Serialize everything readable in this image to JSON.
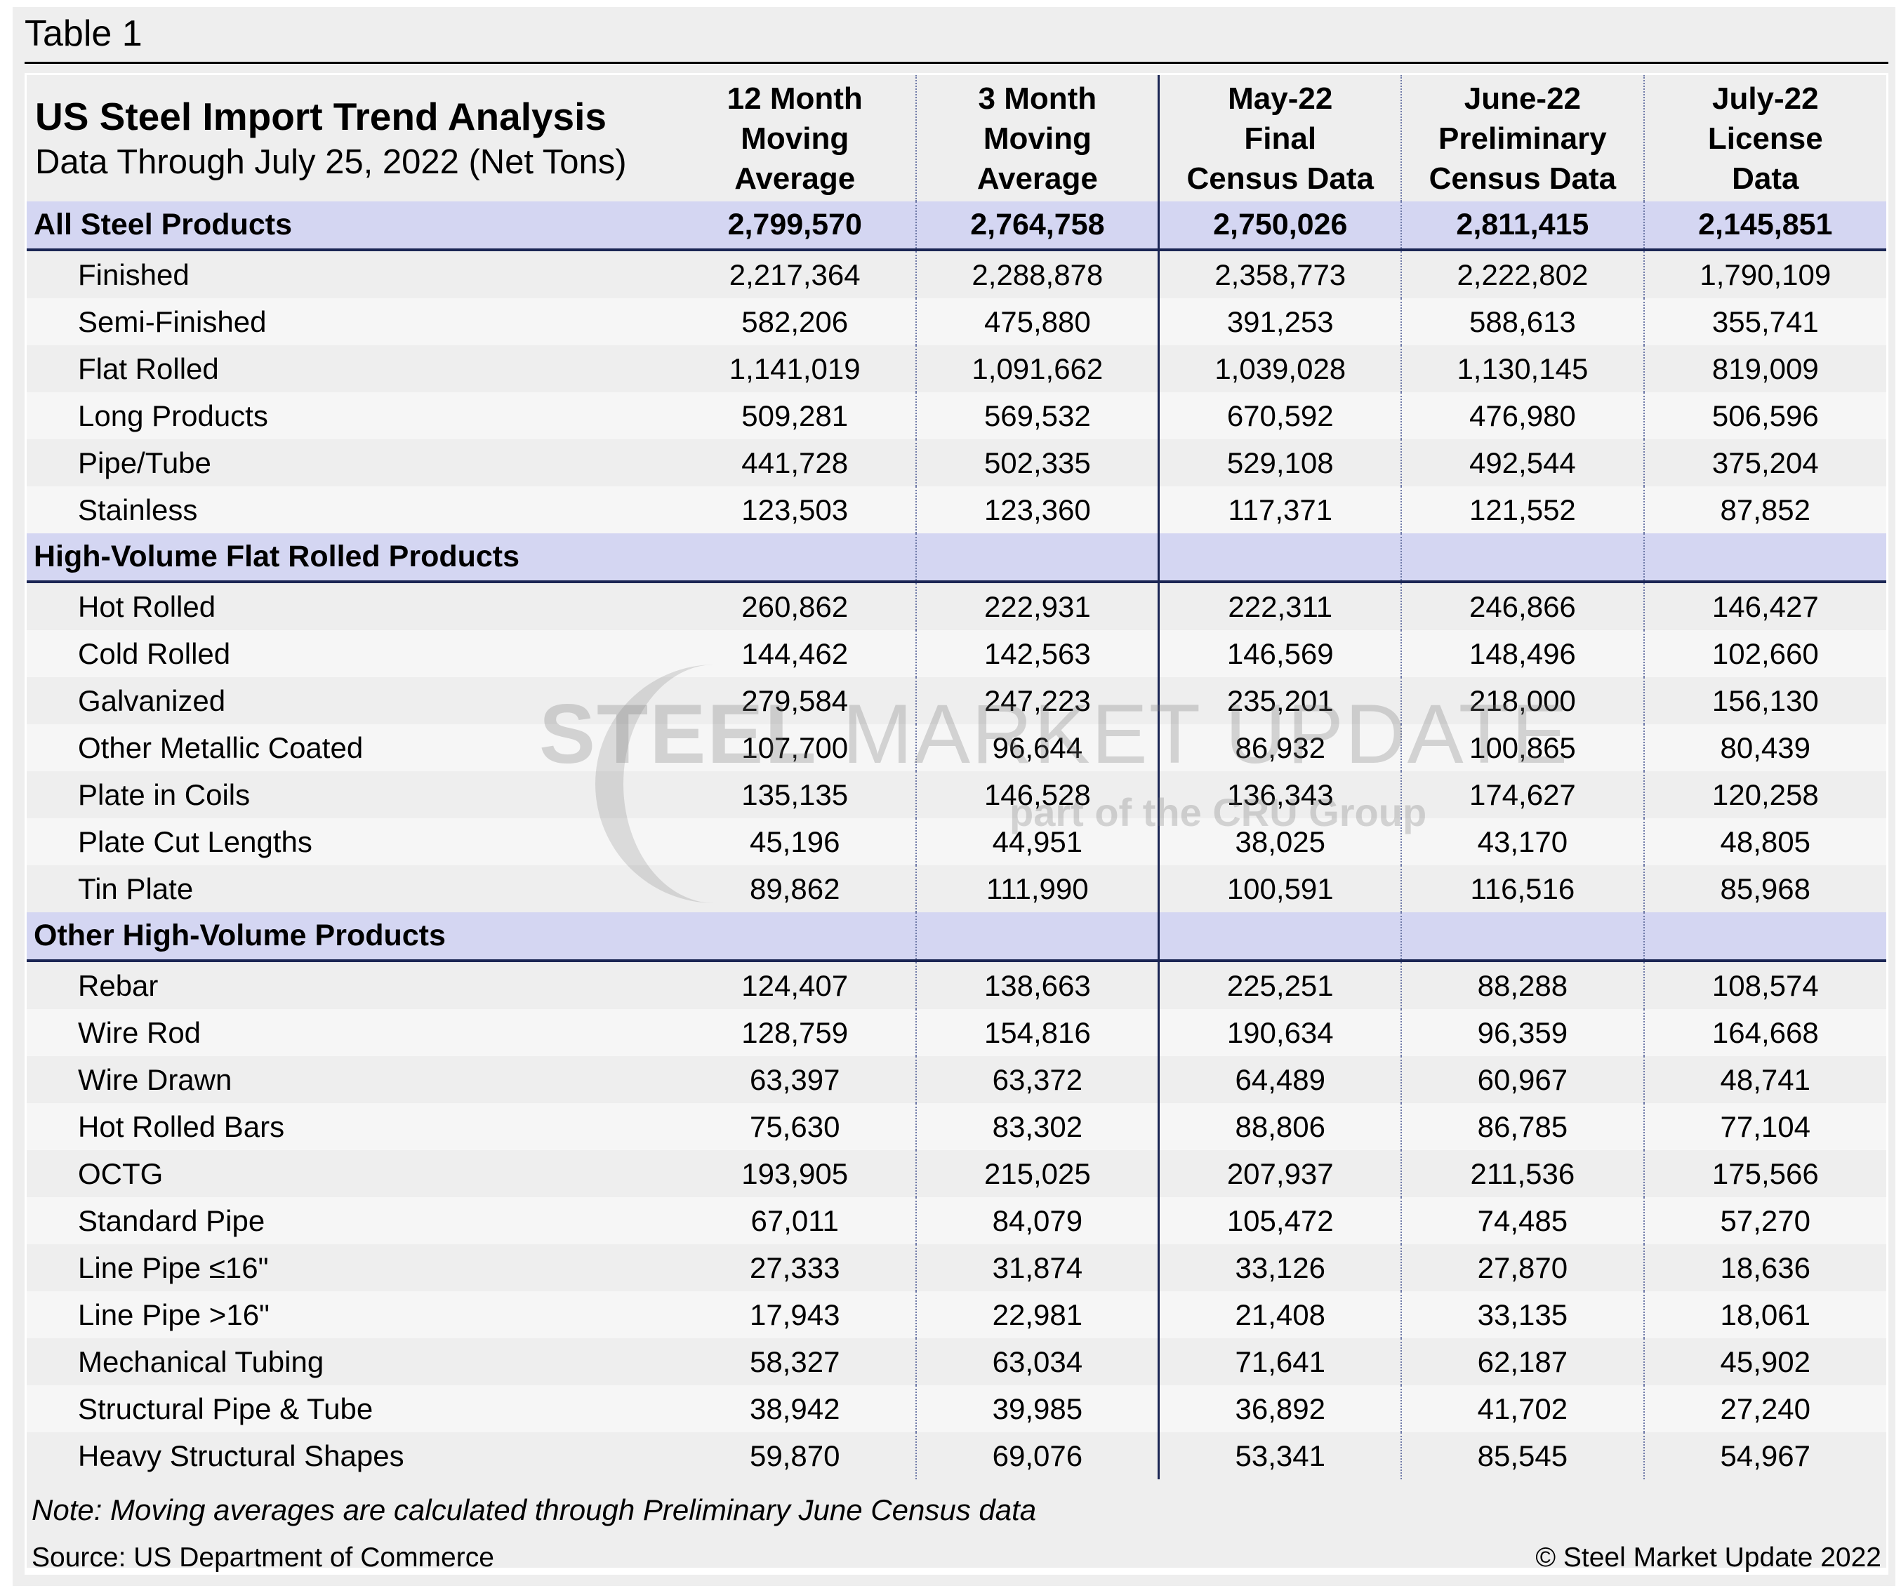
{
  "caption": "Table 1",
  "title": "US Steel Import Trend Analysis",
  "subtitle": "Data Through July 25, 2022 (Net Tons)",
  "columns": [
    [
      "12 Month",
      "Moving",
      "Average"
    ],
    [
      "3 Month",
      "Moving",
      "Average"
    ],
    [
      "May-22",
      "Final",
      "Census Data"
    ],
    [
      "June-22",
      "Preliminary",
      "Census Data"
    ],
    [
      "July-22",
      "License",
      "Data"
    ]
  ],
  "sections": [
    {
      "label": "All Steel Products",
      "values": [
        "2,799,570",
        "2,764,758",
        "2,750,026",
        "2,811,415",
        "2,145,851"
      ],
      "rows": [
        {
          "label": "Finished",
          "values": [
            "2,217,364",
            "2,288,878",
            "2,358,773",
            "2,222,802",
            "1,790,109"
          ]
        },
        {
          "label": "Semi-Finished",
          "values": [
            "582,206",
            "475,880",
            "391,253",
            "588,613",
            "355,741"
          ]
        },
        {
          "label": "Flat Rolled",
          "values": [
            "1,141,019",
            "1,091,662",
            "1,039,028",
            "1,130,145",
            "819,009"
          ]
        },
        {
          "label": "Long Products",
          "values": [
            "509,281",
            "569,532",
            "670,592",
            "476,980",
            "506,596"
          ]
        },
        {
          "label": "Pipe/Tube",
          "values": [
            "441,728",
            "502,335",
            "529,108",
            "492,544",
            "375,204"
          ]
        },
        {
          "label": "Stainless",
          "values": [
            "123,503",
            "123,360",
            "117,371",
            "121,552",
            "87,852"
          ]
        }
      ]
    },
    {
      "label": "High-Volume Flat Rolled Products",
      "values": [
        "",
        "",
        "",
        "",
        ""
      ],
      "rows": [
        {
          "label": "Hot Rolled",
          "values": [
            "260,862",
            "222,931",
            "222,311",
            "246,866",
            "146,427"
          ]
        },
        {
          "label": "Cold Rolled",
          "values": [
            "144,462",
            "142,563",
            "146,569",
            "148,496",
            "102,660"
          ]
        },
        {
          "label": "Galvanized",
          "values": [
            "279,584",
            "247,223",
            "235,201",
            "218,000",
            "156,130"
          ]
        },
        {
          "label": "Other Metallic Coated",
          "values": [
            "107,700",
            "96,644",
            "86,932",
            "100,865",
            "80,439"
          ]
        },
        {
          "label": "Plate in Coils",
          "values": [
            "135,135",
            "146,528",
            "136,343",
            "174,627",
            "120,258"
          ]
        },
        {
          "label": "Plate Cut Lengths",
          "values": [
            "45,196",
            "44,951",
            "38,025",
            "43,170",
            "48,805"
          ]
        },
        {
          "label": "Tin Plate",
          "values": [
            "89,862",
            "111,990",
            "100,591",
            "116,516",
            "85,968"
          ]
        }
      ]
    },
    {
      "label": "Other High-Volume Products",
      "values": [
        "",
        "",
        "",
        "",
        ""
      ],
      "rows": [
        {
          "label": "Rebar",
          "values": [
            "124,407",
            "138,663",
            "225,251",
            "88,288",
            "108,574"
          ]
        },
        {
          "label": "Wire Rod",
          "values": [
            "128,759",
            "154,816",
            "190,634",
            "96,359",
            "164,668"
          ]
        },
        {
          "label": "Wire Drawn",
          "values": [
            "63,397",
            "63,372",
            "64,489",
            "60,967",
            "48,741"
          ]
        },
        {
          "label": "Hot Rolled Bars",
          "values": [
            "75,630",
            "83,302",
            "88,806",
            "86,785",
            "77,104"
          ]
        },
        {
          "label": "OCTG",
          "values": [
            "193,905",
            "215,025",
            "207,937",
            "211,536",
            "175,566"
          ]
        },
        {
          "label": "Standard Pipe",
          "values": [
            "67,011",
            "84,079",
            "105,472",
            "74,485",
            "57,270"
          ]
        },
        {
          "label": "Line Pipe ≤16\"",
          "values": [
            "27,333",
            "31,874",
            "33,126",
            "27,870",
            "18,636"
          ]
        },
        {
          "label": "Line Pipe >16\"",
          "values": [
            "17,943",
            "22,981",
            "21,408",
            "33,135",
            "18,061"
          ]
        },
        {
          "label": "Mechanical Tubing",
          "values": [
            "58,327",
            "63,034",
            "71,641",
            "62,187",
            "45,902"
          ]
        },
        {
          "label": "Structural Pipe & Tube",
          "values": [
            "38,942",
            "39,985",
            "36,892",
            "41,702",
            "27,240"
          ]
        },
        {
          "label": "Heavy Structural Shapes",
          "values": [
            "59,870",
            "69,076",
            "53,341",
            "85,545",
            "54,967"
          ]
        }
      ]
    }
  ],
  "watermark": {
    "brand_bold": "STEEL",
    "brand_rest": " MARKET UPDATE",
    "tagline": "part of the CRU Group"
  },
  "note": "Note: Moving averages are calculated through Preliminary June Census data",
  "source": "Source: US Department of Commerce",
  "copyright": "© Steel Market Update 2022",
  "colors": {
    "section_band": "#d4d6f2",
    "divider": "#1b2654",
    "background": "#eeeeee",
    "alt_row": "#f6f6f6"
  }
}
